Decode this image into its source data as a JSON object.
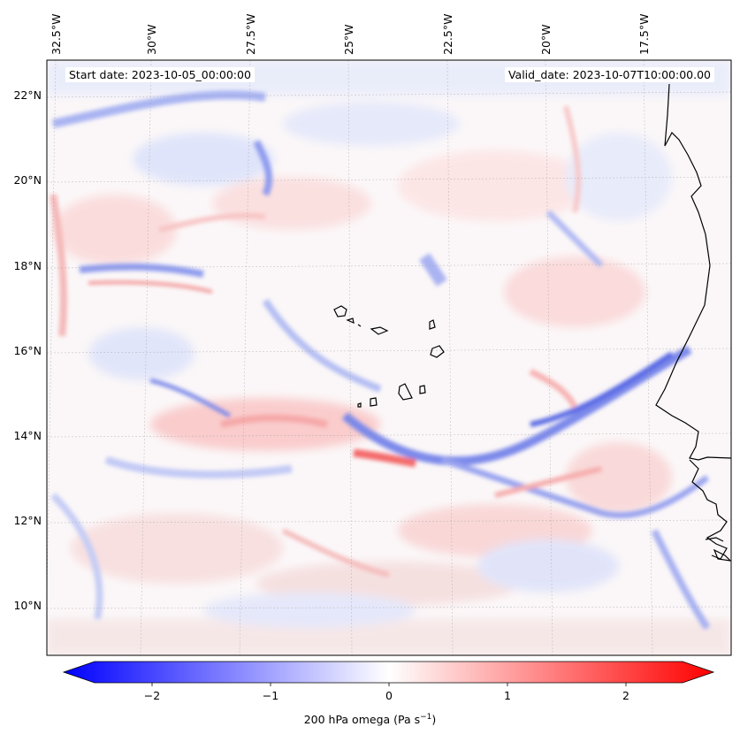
{
  "header": {
    "start_date": "Start date: 2023-10-05_00:00:00",
    "valid_date": "Valid_date: 2023-10-07T10:00:00.00"
  },
  "map": {
    "lon_ticks": [
      "32.5°W",
      "30°W",
      "27.5°W",
      "25°W",
      "22.5°W",
      "20°W",
      "17.5°W"
    ],
    "lat_ticks": [
      "22°N",
      "20°N",
      "18°N",
      "16°N",
      "14°N",
      "12°N",
      "10°N"
    ],
    "gridlines": "dashed-light",
    "coastlines": true
  },
  "colorbar": {
    "ticks": [
      "−2",
      "−1",
      "0",
      "1",
      "2"
    ],
    "label": "200 hPa omega (Pa s",
    "label_exponent": "−1",
    "label_close": ")",
    "colormap": "bwr",
    "extend": "both",
    "color_low": "#0000ff",
    "color_mid": "#ffffff",
    "color_high": "#ff0000",
    "range": [
      -2.5,
      2.5
    ]
  },
  "colors": {
    "coastline": "#000000",
    "grid": "#a0a0a0"
  }
}
